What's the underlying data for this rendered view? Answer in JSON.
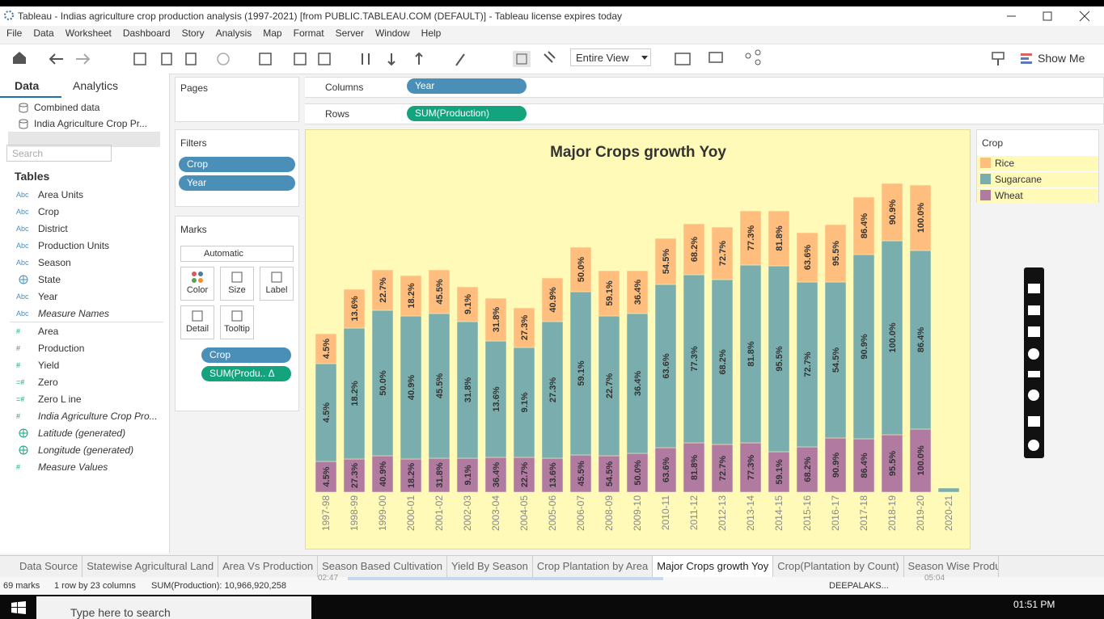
{
  "window": {
    "title": "Tableau - Indias agriculture crop production analysis (1997-2021) [from PUBLIC.TABLEAU.COM (DEFAULT)] - Tableau license expires today",
    "menu": [
      "File",
      "Data",
      "Worksheet",
      "Dashboard",
      "Story",
      "Analysis",
      "Map",
      "Format",
      "Server",
      "Window",
      "Help"
    ],
    "toolbar": {
      "view": "Entire View",
      "show_me": "Show Me"
    }
  },
  "data_pane": {
    "tabs": [
      "Data",
      "Analytics"
    ],
    "active_tab": 0,
    "sources": [
      "Combined data",
      "India Agriculture Crop Pr..."
    ],
    "active_source": 1,
    "search": "Search",
    "tables_heading": "Tables",
    "dimensions": [
      {
        "icon": "Abc",
        "name": "Area Units",
        "italic": false
      },
      {
        "icon": "Abc",
        "name": "Crop",
        "italic": false
      },
      {
        "icon": "Abc",
        "name": "District",
        "italic": false
      },
      {
        "icon": "Abc",
        "name": "Production Units",
        "italic": false
      },
      {
        "icon": "Abc",
        "name": "Season",
        "italic": false
      },
      {
        "icon": null,
        "name": "State",
        "italic": false
      },
      {
        "icon": "Abc",
        "name": "Year",
        "italic": false
      },
      {
        "icon": "Abc",
        "name": "Measure Names",
        "italic": true
      }
    ],
    "measures": [
      {
        "icon": "#",
        "name": "Area",
        "italic": false
      },
      {
        "icon": "#",
        "name": "Production",
        "italic": false
      },
      {
        "icon": "#",
        "name": "Yield",
        "italic": false
      },
      {
        "icon": "=#",
        "name": "Zero",
        "italic": false
      },
      {
        "icon": "=#",
        "name": "Zero L ine",
        "italic": false
      },
      {
        "icon": "#",
        "name": "India Agriculture Crop Pro...",
        "italic": true
      },
      {
        "icon": null,
        "name": "Latitude (generated)",
        "italic": true
      },
      {
        "icon": null,
        "name": "Longitude (generated)",
        "italic": true
      },
      {
        "icon": "#",
        "name": "Measure Values",
        "italic": true
      }
    ]
  },
  "cards": {
    "pages": "Pages",
    "filters": {
      "title": "Filters",
      "pills": [
        "Crop",
        "Year"
      ]
    },
    "marks": {
      "title": "Marks",
      "type": "Automatic",
      "buttons": [
        "Color",
        "Size",
        "Label",
        "Detail",
        "Tooltip"
      ],
      "pills": [
        {
          "text": "Crop",
          "color": "#4a8fb8"
        },
        {
          "text": "SUM(Produ.. Δ",
          "color": "#13a37d"
        }
      ]
    }
  },
  "shelves": {
    "columns": {
      "label": "Columns",
      "pill": "Year",
      "color": "#4a8fb8"
    },
    "rows": {
      "label": "Rows",
      "pill": "SUM(Production)",
      "color": "#13a37d"
    }
  },
  "chart_data": {
    "type": "stacked-bar",
    "title": "Major Crops growth Yoy",
    "legend_title": "Crop",
    "categories": [
      "1997-98",
      "1998-99",
      "1999-00",
      "2000-01",
      "2001-02",
      "2002-03",
      "2003-04",
      "2004-05",
      "2005-06",
      "2006-07",
      "2008-09",
      "2009-10",
      "2010-11",
      "2011-12",
      "2012-13",
      "2013-14",
      "2014-15",
      "2015-16",
      "2016-17",
      "2017-18",
      "2018-19",
      "2019-20",
      "2020-21"
    ],
    "ylim": [
      0,
      400
    ],
    "series": [
      {
        "name": "Rice",
        "color": "#ffbe7d",
        "values": [
          37,
          48,
          50,
          50,
          54,
          43,
          53,
          49,
          54,
          55,
          56,
          53,
          57,
          63,
          65,
          67,
          68,
          61,
          71,
          71,
          71,
          81,
          null
        ],
        "labels": [
          "4.5%",
          "13.6%",
          "22.7%",
          "18.2%",
          "45.5%",
          "9.1%",
          "31.8%",
          "27.3%",
          "40.9%",
          "50.0%",
          "59.1%",
          "36.4%",
          "54.5%",
          "68.2%",
          "72.7%",
          "77.3%",
          "81.8%",
          "63.6%",
          "95.5%",
          "86.4%",
          "90.9%",
          "100.0%",
          null
        ]
      },
      {
        "name": "Sugarcane",
        "color": "#7aaeae",
        "values": [
          121,
          162,
          180,
          177,
          179,
          169,
          144,
          136,
          169,
          202,
          173,
          173,
          202,
          208,
          204,
          220,
          230,
          204,
          193,
          228,
          240,
          221,
          5
        ],
        "labels": [
          "4.5%",
          "18.2%",
          "50.0%",
          "40.9%",
          "45.5%",
          "31.8%",
          "13.6%",
          "9.1%",
          "27.3%",
          "59.1%",
          "22.7%",
          "36.4%",
          "63.6%",
          "77.3%",
          "68.2%",
          "81.8%",
          "95.5%",
          "72.7%",
          "54.5%",
          "90.9%",
          "100.0%",
          "86.4%",
          null
        ]
      },
      {
        "name": "Wheat",
        "color": "#b07aa1",
        "values": [
          38,
          41,
          45,
          41,
          42,
          42,
          43,
          43,
          42,
          46,
          45,
          48,
          55,
          61,
          59,
          61,
          50,
          56,
          67,
          66,
          71,
          78,
          null
        ],
        "labels": [
          "4.5%",
          "27.3%",
          "40.9%",
          "18.2%",
          "31.8%",
          "9.1%",
          "36.4%",
          "22.7%",
          "13.6%",
          "45.5%",
          "54.5%",
          "50.0%",
          "63.6%",
          "81.8%",
          "72.7%",
          "77.3%",
          "59.1%",
          "68.2%",
          "90.9%",
          "86.4%",
          "95.5%",
          "100.0%",
          null
        ]
      }
    ]
  },
  "sheet_tabs": [
    "Data Source",
    "Statewise Agricultural Land",
    "Area Vs Production",
    "Season Based Cultivation",
    "Yield By Season",
    "Crop Plantation by Area",
    "Major Crops growth Yoy",
    "Crop(Plantation by Count)",
    "Season Wise Produ"
  ],
  "active_tab": 6,
  "status": {
    "marks": "69 marks",
    "dims": "1 row by 23 columns",
    "sum": "SUM(Production): 10,966,920,258",
    "user": "DEEPALAKS...",
    "elapsed": "02:47",
    "total": "05:04"
  },
  "taskbar": {
    "search": "Type here to search",
    "time": "01:51 PM"
  }
}
